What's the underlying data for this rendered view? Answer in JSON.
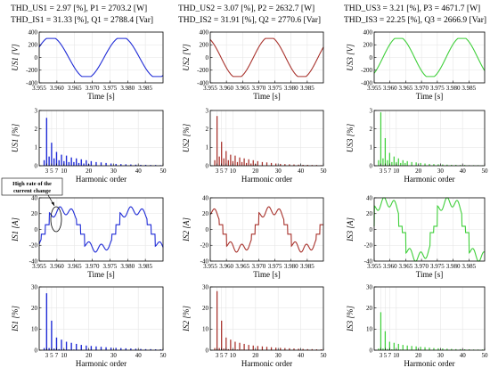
{
  "colors": [
    "#1f2bd6",
    "#a8322c",
    "#3fcf3a"
  ],
  "headers": [
    {
      "line1": "THD_US1 = 2.97 [%], P1 = 2703.2 [W]",
      "line2": "THD_IS1 = 31.33 [%], Q1 = 2788.4 [Var]"
    },
    {
      "line1": "THD_US2 = 3.07 [%], P2 = 2632.7 [W]",
      "line2": "THD_IS2 = 31.91 [%], Q2 = 2770.6 [Var]"
    },
    {
      "line1": "THD_US3 = 3.21 [%], P3 = 4671.7 [W]",
      "line2": "THD_IS3 = 22.25 [%], Q3 = 2666.9 [Var]"
    }
  ],
  "annotation": {
    "line1": "High rate of the",
    "line2": "current change"
  },
  "chart_data": [
    {
      "id": "U1w",
      "col": 0,
      "row": 0,
      "type": "line",
      "ylabel": "US1 [V]",
      "xlabel": "Time [s]",
      "xlim": [
        3.955,
        3.99
      ],
      "ylim": [
        -400,
        400
      ],
      "xticks": [
        3.955,
        3.96,
        3.965,
        3.97,
        3.975,
        3.98,
        3.985
      ],
      "yticks": [
        -400,
        -200,
        0,
        200,
        400
      ],
      "wave": {
        "amp": 325,
        "freq": 50,
        "phase_deg": 120,
        "clip": 300
      }
    },
    {
      "id": "U2w",
      "col": 1,
      "row": 0,
      "type": "line",
      "ylabel": "US2 [V]",
      "xlabel": "Time [s]",
      "xlim": [
        3.955,
        3.99
      ],
      "ylim": [
        -400,
        400
      ],
      "xticks": [
        3.955,
        3.96,
        3.965,
        3.97,
        3.975,
        3.98,
        3.985
      ],
      "yticks": [
        -400,
        -200,
        0,
        200,
        400
      ],
      "wave": {
        "amp": 325,
        "freq": 50,
        "phase_deg": 210,
        "clip": 300
      }
    },
    {
      "id": "U3w",
      "col": 2,
      "row": 0,
      "type": "line",
      "ylabel": "US3 [V]",
      "xlabel": "Time [s]",
      "xlim": [
        3.955,
        3.99
      ],
      "ylim": [
        -400,
        400
      ],
      "xticks": [
        3.955,
        3.96,
        3.965,
        3.97,
        3.975,
        3.98,
        3.985
      ],
      "yticks": [
        -400,
        -200,
        0,
        200,
        400
      ],
      "wave": {
        "amp": 325,
        "freq": 50,
        "phase_deg": 40,
        "clip": 300
      }
    },
    {
      "id": "U1h",
      "col": 0,
      "row": 1,
      "type": "bar",
      "ylabel": "US1 [%]",
      "xlabel": "Harmonic order",
      "xlim": [
        0,
        50
      ],
      "ylim": [
        0,
        3
      ],
      "xticks": [
        3,
        5,
        7,
        10,
        20,
        30,
        40,
        50
      ],
      "yticks": [
        0,
        1,
        2,
        3
      ],
      "harmonics": [
        2,
        3,
        4,
        5,
        6,
        7,
        8,
        9,
        10,
        11,
        12,
        13,
        14,
        15,
        16,
        17,
        18,
        19,
        20,
        21,
        23,
        25,
        27,
        29,
        31,
        33,
        35,
        37,
        39,
        41,
        43,
        45,
        47,
        49
      ],
      "values": [
        0.3,
        2.6,
        0.5,
        1.25,
        0.4,
        0.75,
        0.3,
        0.6,
        0.25,
        0.55,
        0.2,
        0.45,
        0.2,
        0.4,
        0.15,
        0.35,
        0.12,
        0.3,
        0.1,
        0.25,
        0.2,
        0.18,
        0.15,
        0.12,
        0.1,
        0.09,
        0.08,
        0.07,
        0.06,
        0.05,
        0.05,
        0.04,
        0.04,
        0.03
      ]
    },
    {
      "id": "U2h",
      "col": 1,
      "row": 1,
      "type": "bar",
      "ylabel": "US2 [%]",
      "xlabel": "Harmonic order",
      "xlim": [
        0,
        50
      ],
      "ylim": [
        0,
        3
      ],
      "xticks": [
        3,
        5,
        7,
        10,
        20,
        30,
        40,
        50
      ],
      "yticks": [
        0,
        1,
        2,
        3
      ],
      "harmonics": [
        2,
        3,
        4,
        5,
        6,
        7,
        8,
        9,
        10,
        11,
        12,
        13,
        14,
        15,
        16,
        17,
        18,
        19,
        20,
        21,
        23,
        25,
        27,
        29,
        31,
        33,
        35,
        37,
        39,
        41,
        43,
        45,
        47,
        49
      ],
      "values": [
        0.3,
        2.7,
        0.5,
        1.3,
        0.4,
        0.8,
        0.3,
        0.6,
        0.25,
        0.55,
        0.2,
        0.45,
        0.2,
        0.4,
        0.15,
        0.35,
        0.12,
        0.3,
        0.1,
        0.25,
        0.2,
        0.18,
        0.15,
        0.12,
        0.1,
        0.09,
        0.08,
        0.07,
        0.06,
        0.05,
        0.05,
        0.04,
        0.04,
        0.03
      ]
    },
    {
      "id": "U3h",
      "col": 2,
      "row": 1,
      "type": "bar",
      "ylabel": "US3 [%]",
      "xlabel": "Harmonic order",
      "xlim": [
        0,
        50
      ],
      "ylim": [
        0,
        3
      ],
      "xticks": [
        3,
        5,
        7,
        10,
        20,
        30,
        40,
        50
      ],
      "yticks": [
        0,
        1,
        2,
        3
      ],
      "harmonics": [
        2,
        3,
        4,
        5,
        6,
        7,
        8,
        9,
        10,
        11,
        12,
        13,
        14,
        15,
        17,
        19,
        21,
        23,
        25,
        27,
        29,
        31,
        33,
        35,
        37,
        39,
        41,
        43,
        45,
        47,
        49
      ],
      "values": [
        0.3,
        2.9,
        0.4,
        1.5,
        0.3,
        0.7,
        0.2,
        0.5,
        0.2,
        0.4,
        0.15,
        0.3,
        0.15,
        0.25,
        0.2,
        0.18,
        0.15,
        0.12,
        0.1,
        0.09,
        0.08,
        0.07,
        0.06,
        0.05,
        0.05,
        0.04,
        0.04,
        0.03,
        0.03,
        0.03,
        0.02
      ]
    },
    {
      "id": "I1w",
      "col": 0,
      "row": 2,
      "type": "line",
      "ylabel": "IS1 [A]",
      "xlabel": "Time [s]",
      "xlim": [
        3.955,
        3.99
      ],
      "ylim": [
        -40,
        40
      ],
      "xticks": [
        3.955,
        3.96,
        3.965,
        3.97,
        3.975,
        3.98,
        3.985
      ],
      "yticks": [
        -40,
        -20,
        0,
        20,
        40
      ],
      "wave": {
        "amp": 24,
        "freq": 50,
        "phase_deg": 60,
        "flat": 6,
        "ripple": 5
      }
    },
    {
      "id": "I2w",
      "col": 1,
      "row": 2,
      "type": "line",
      "ylabel": "IS2 [A]",
      "xlabel": "Time [s]",
      "xlim": [
        3.955,
        3.99
      ],
      "ylim": [
        -40,
        40
      ],
      "xticks": [
        3.955,
        3.96,
        3.965,
        3.97,
        3.975,
        3.98,
        3.985
      ],
      "yticks": [
        -40,
        -20,
        0,
        20,
        40
      ],
      "wave": {
        "amp": 24,
        "freq": 50,
        "phase_deg": 200,
        "flat": 6,
        "ripple": 5
      }
    },
    {
      "id": "I3w",
      "col": 2,
      "row": 2,
      "type": "line",
      "ylabel": "IS3 [A]",
      "xlabel": "Time [s]",
      "xlim": [
        3.955,
        3.99
      ],
      "ylim": [
        -40,
        40
      ],
      "xticks": [
        3.955,
        3.96,
        3.965,
        3.97,
        3.975,
        3.98,
        3.985
      ],
      "yticks": [
        -40,
        -20,
        0,
        20,
        40
      ],
      "wave": {
        "amp": 35,
        "freq": 50,
        "phase_deg": 110,
        "flat": 4,
        "ripple": 6
      }
    },
    {
      "id": "I1h",
      "col": 0,
      "row": 3,
      "type": "bar",
      "ylabel": "IS1 [%]",
      "xlabel": "Harmonic order",
      "xlim": [
        0,
        50
      ],
      "ylim": [
        0,
        30
      ],
      "xticks": [
        3,
        5,
        7,
        10,
        20,
        30,
        40,
        50
      ],
      "yticks": [
        0,
        10,
        20,
        30
      ],
      "harmonics": [
        2,
        3,
        4,
        5,
        6,
        7,
        8,
        9,
        10,
        11,
        12,
        13,
        14,
        15,
        16,
        17,
        18,
        19,
        20,
        21,
        23,
        25,
        27,
        29,
        31,
        33,
        35,
        37,
        39,
        41,
        43,
        45,
        47,
        49
      ],
      "values": [
        1,
        27,
        1,
        14,
        0.8,
        6,
        0.5,
        5,
        0.4,
        4,
        0.3,
        3.5,
        0.3,
        3,
        0.2,
        2.5,
        0.2,
        2.2,
        0.2,
        2,
        1.8,
        1.6,
        1.4,
        1.2,
        1.1,
        1,
        0.9,
        0.8,
        0.7,
        0.6,
        0.5,
        0.5,
        0.4,
        0.4
      ]
    },
    {
      "id": "I2h",
      "col": 1,
      "row": 3,
      "type": "bar",
      "ylabel": "IS2 [%]",
      "xlabel": "Harmonic order",
      "xlim": [
        0,
        50
      ],
      "ylim": [
        0,
        30
      ],
      "xticks": [
        3,
        5,
        7,
        10,
        20,
        30,
        40,
        50
      ],
      "yticks": [
        0,
        10,
        20,
        30
      ],
      "harmonics": [
        2,
        3,
        4,
        5,
        6,
        7,
        8,
        9,
        10,
        11,
        12,
        13,
        14,
        15,
        16,
        17,
        18,
        19,
        20,
        21,
        23,
        25,
        27,
        29,
        31,
        33,
        35,
        37,
        39,
        41,
        43,
        45,
        47,
        49
      ],
      "values": [
        1,
        28,
        1,
        14,
        0.8,
        6,
        0.5,
        5,
        0.4,
        4,
        0.3,
        3.5,
        0.3,
        3,
        0.2,
        2.5,
        0.2,
        2.2,
        0.2,
        2,
        1.8,
        1.6,
        1.4,
        1.2,
        1.1,
        1,
        0.9,
        0.8,
        0.7,
        0.6,
        0.5,
        0.5,
        0.4,
        0.4
      ]
    },
    {
      "id": "I3h",
      "col": 2,
      "row": 3,
      "type": "bar",
      "ylabel": "IS3 [%]",
      "xlabel": "Harmonic order",
      "xlim": [
        0,
        50
      ],
      "ylim": [
        0,
        30
      ],
      "xticks": [
        3,
        5,
        7,
        10,
        20,
        30,
        40,
        50
      ],
      "yticks": [
        0,
        10,
        20,
        30
      ],
      "harmonics": [
        2,
        3,
        4,
        5,
        6,
        7,
        8,
        9,
        10,
        11,
        12,
        13,
        14,
        15,
        16,
        17,
        18,
        19,
        20,
        21,
        23,
        25,
        27,
        29,
        31,
        33,
        35,
        37,
        39,
        41,
        43,
        45,
        47,
        49
      ],
      "values": [
        0.8,
        18,
        0.8,
        9,
        0.6,
        4,
        0.4,
        3.5,
        0.3,
        3,
        0.3,
        2.5,
        0.2,
        2.2,
        0.2,
        2,
        0.2,
        1.8,
        0.2,
        1.6,
        1.4,
        1.2,
        1,
        0.9,
        0.8,
        0.7,
        0.6,
        0.5,
        0.5,
        0.4,
        0.4,
        0.3,
        0.3,
        0.3
      ]
    }
  ]
}
